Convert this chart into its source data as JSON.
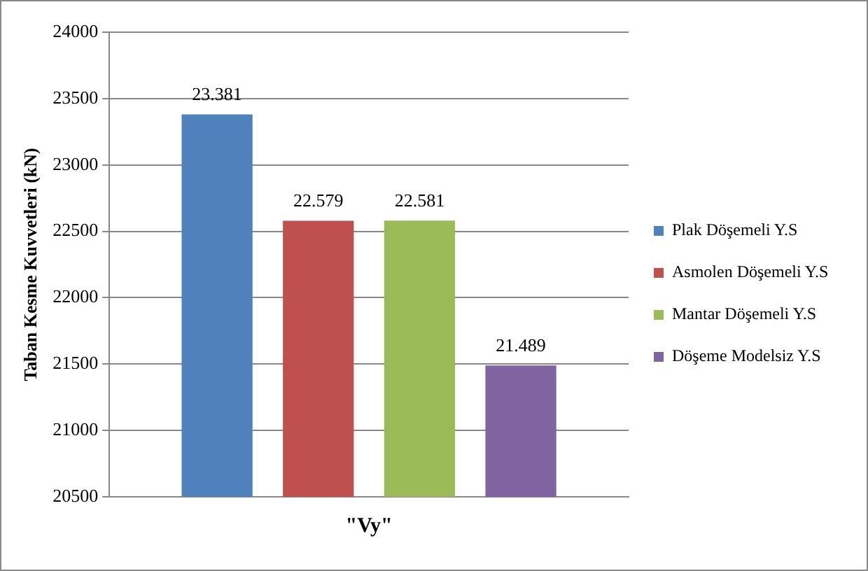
{
  "chart_data": {
    "type": "bar",
    "ylabel": "Taban Kesme Kuvvetleri (kN)",
    "categories": [
      "\"Vy\""
    ],
    "series": [
      {
        "name": "Plak Döşemeli Y.S",
        "color": "#4f81bd",
        "values": [
          23381
        ],
        "value_labels": [
          "23.381"
        ]
      },
      {
        "name": "Asmolen Döşemeli Y.S",
        "color": "#c0504d",
        "values": [
          22579
        ],
        "value_labels": [
          "22.579"
        ]
      },
      {
        "name": "Mantar Döşemeli Y.S",
        "color": "#9bbb59",
        "values": [
          22581
        ],
        "value_labels": [
          "22.581"
        ]
      },
      {
        "name": "Döşeme Modelsiz Y.S",
        "color": "#8064a2",
        "values": [
          21489
        ],
        "value_labels": [
          "21.489"
        ]
      }
    ],
    "ylim": [
      20500,
      24000
    ],
    "yticks": [
      20500,
      21000,
      21500,
      22000,
      22500,
      23000,
      23500,
      24000
    ],
    "grid": "y",
    "legend": "right"
  }
}
